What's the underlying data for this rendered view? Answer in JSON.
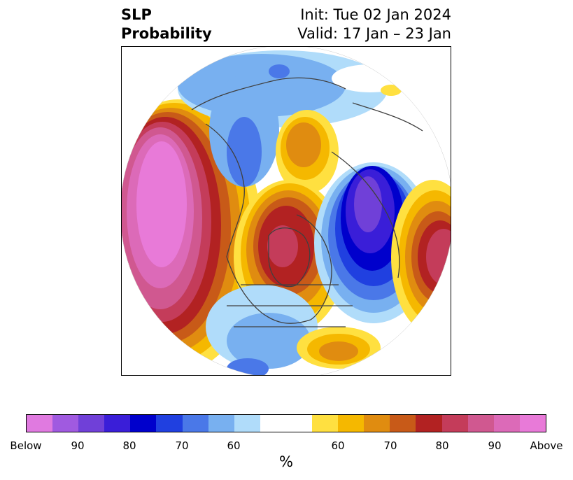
{
  "title": {
    "left_line1": "SLP",
    "left_line2": "Probability",
    "right_line1": "Init: Tue 02 Jan 2024",
    "right_line2": "Valid: 17 Jan – 23 Jan"
  },
  "colorbar": {
    "unit": "%",
    "tick_labels": [
      "Below",
      "90",
      "80",
      "70",
      "60",
      "60",
      "70",
      "80",
      "90",
      "Above"
    ],
    "colors": [
      "#e07ae0",
      "#a05ae0",
      "#7040d8",
      "#3a1ed8",
      "#0000cc",
      "#2040e0",
      "#4a78e8",
      "#78b0f0",
      "#b0dcfa",
      "#ffffff",
      "#ffffff",
      "#ffe040",
      "#f5b800",
      "#e08c10",
      "#c85a18",
      "#b22222",
      "#c43c5a",
      "#d05890",
      "#dc6ab8",
      "#e87ad8"
    ],
    "min_label": "Below",
    "max_label": "Above"
  },
  "map": {
    "projection": "north-polar-stereographic",
    "variable": "SLP probability",
    "features": [
      {
        "name": "north-pacific-high",
        "category": "above",
        "max_level": "Above"
      },
      {
        "name": "arctic-greenland-high",
        "category": "above",
        "max_level": "80"
      },
      {
        "name": "north-atlantic-low",
        "category": "below",
        "max_level": "90"
      },
      {
        "name": "eastern-atlantic-high",
        "category": "above",
        "max_level": "80"
      },
      {
        "name": "siberia-low",
        "category": "below",
        "max_level": "70"
      },
      {
        "name": "gulf-of-mexico-high",
        "category": "above",
        "max_level": "70"
      }
    ]
  }
}
